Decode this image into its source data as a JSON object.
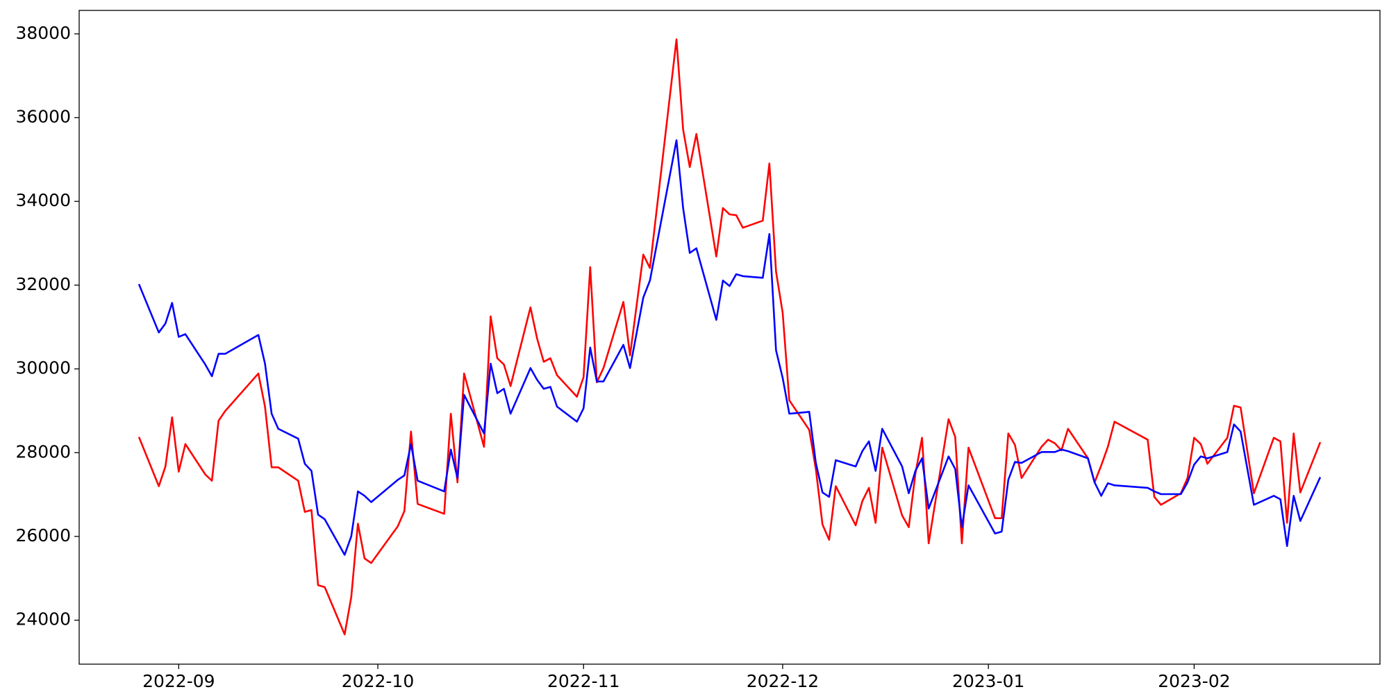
{
  "chart_data": {
    "type": "line",
    "x": [
      -6,
      -3,
      -2,
      -1,
      0,
      1,
      4,
      5,
      6,
      7,
      12,
      13,
      14,
      15,
      18,
      19,
      20,
      21,
      22,
      25,
      26,
      27,
      28,
      29,
      33,
      34,
      35,
      36,
      40,
      41,
      42,
      43,
      46,
      47,
      48,
      49,
      50,
      53,
      54,
      55,
      56,
      57,
      60,
      61,
      62,
      63,
      64,
      67,
      68,
      70,
      71,
      75,
      76,
      77,
      78,
      81,
      82,
      83,
      84,
      85,
      88,
      89,
      90,
      91,
      92,
      95,
      96,
      97,
      98,
      99,
      102,
      103,
      104,
      105,
      106,
      109,
      110,
      111,
      112,
      113,
      116,
      117,
      118,
      119,
      123,
      124,
      125,
      126,
      127,
      130,
      131,
      132,
      133,
      134,
      137,
      138,
      139,
      140,
      141,
      146,
      147,
      148,
      151,
      152,
      153,
      154,
      155,
      158,
      159,
      160,
      162,
      165,
      166,
      167,
      168,
      169,
      172
    ],
    "series": [
      {
        "color": "#ff0000",
        "values": [
          28375,
          27200,
          27670,
          28845,
          27545,
          28205,
          27480,
          27330,
          28760,
          28995,
          29890,
          29100,
          27650,
          27650,
          27330,
          26585,
          26630,
          24835,
          24790,
          23660,
          24555,
          26305,
          25475,
          25365,
          26240,
          26605,
          28505,
          26775,
          26540,
          28930,
          27290,
          29890,
          28140,
          31255,
          30255,
          30105,
          29590,
          31470,
          30725,
          30170,
          30255,
          29850,
          29335,
          29805,
          32430,
          29680,
          30020,
          31600,
          30320,
          32730,
          32410,
          37870,
          35715,
          34820,
          35610,
          32685,
          33840,
          33690,
          33670,
          33370,
          33540,
          34905,
          32325,
          31340,
          29250,
          28545,
          27605,
          26285,
          25920,
          27200,
          26265,
          26840,
          27160,
          26325,
          28120,
          26500,
          26220,
          27500,
          28355,
          25835,
          28800,
          28375,
          25835,
          28120,
          26435,
          26435,
          28460,
          28185,
          27395,
          28140,
          28310,
          28225,
          28055,
          28570,
          27865,
          27290,
          27695,
          28140,
          28740,
          28310,
          26945,
          26755,
          27030,
          27395,
          28355,
          28205,
          27735,
          28355,
          29120,
          29080,
          27030,
          28355,
          28270,
          26325,
          28460,
          27050,
          28250
        ]
      },
      {
        "color": "#0000ff",
        "values": [
          32025,
          30870,
          31085,
          31575,
          30765,
          30830,
          30105,
          29825,
          30360,
          30360,
          30810,
          30125,
          28930,
          28570,
          28335,
          27735,
          27565,
          26520,
          26410,
          25560,
          26005,
          27075,
          26970,
          26820,
          27350,
          27455,
          28205,
          27330,
          27075,
          28075,
          27395,
          29380,
          28460,
          30125,
          29420,
          29525,
          28930,
          30020,
          29740,
          29525,
          29570,
          29100,
          28740,
          29060,
          30510,
          29700,
          29700,
          30575,
          30020,
          31705,
          32110,
          35460,
          33840,
          32770,
          32880,
          31170,
          32110,
          31980,
          32260,
          32215,
          32175,
          33220,
          30445,
          29785,
          28930,
          28975,
          27755,
          27050,
          26945,
          27820,
          27670,
          28035,
          28270,
          27565,
          28570,
          27670,
          27030,
          27565,
          27865,
          26665,
          27910,
          27610,
          26220,
          27220,
          26070,
          26115,
          27350,
          27780,
          27755,
          28015,
          28015,
          28015,
          28075,
          28035,
          27865,
          27290,
          26970,
          27270,
          27220,
          27160,
          27075,
          27010,
          27010,
          27290,
          27715,
          27910,
          27865,
          28015,
          28675,
          28505,
          26755,
          26970,
          26885,
          25770,
          26970,
          26370,
          27415
        ]
      }
    ],
    "xlim": [
      -15,
      181
    ],
    "xticks": [
      {
        "value": 0,
        "label": "2022-09"
      },
      {
        "value": 30,
        "label": "2022-10"
      },
      {
        "value": 61,
        "label": "2022-11"
      },
      {
        "value": 91,
        "label": "2022-12"
      },
      {
        "value": 122,
        "label": "2023-01"
      },
      {
        "value": 153,
        "label": "2023-02"
      }
    ],
    "ylim": [
      22950,
      38560
    ],
    "yticks": [
      24000,
      26000,
      28000,
      30000,
      32000,
      34000,
      36000,
      38000
    ]
  }
}
